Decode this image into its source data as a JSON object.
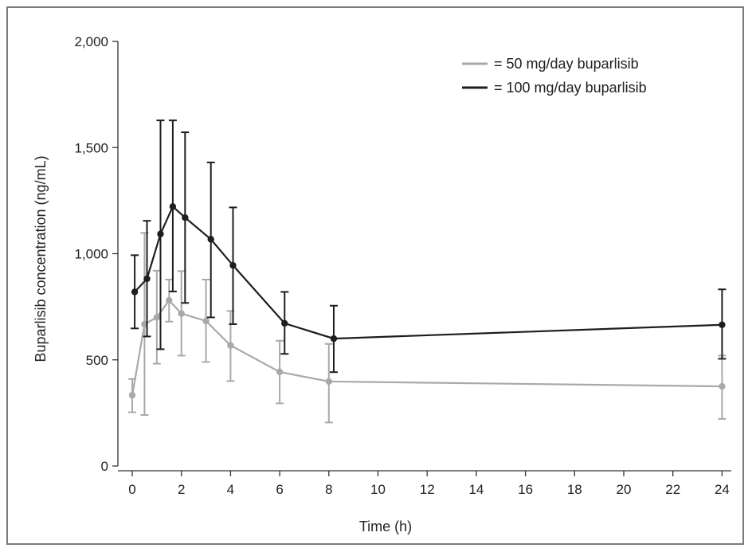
{
  "chart_data": {
    "type": "line",
    "title": "",
    "xlabel": "Time (h)",
    "ylabel": "Buparlisib concentration (ng/mL)",
    "xlim": [
      -0.6,
      24.6
    ],
    "ylim": [
      0,
      2000
    ],
    "xticks": [
      0,
      2,
      4,
      6,
      8,
      10,
      12,
      14,
      16,
      18,
      20,
      22,
      24
    ],
    "yticks": [
      0,
      500,
      1000,
      1500,
      2000
    ],
    "ytick_labels": [
      "0",
      "500",
      "1,000",
      "1,500",
      "2,000"
    ],
    "grid": false,
    "legend_position": "top-right",
    "series": [
      {
        "name": "= 50 mg/day buparlisib",
        "color": "#a9a9a9",
        "points": [
          {
            "x": 0,
            "y": 333,
            "err_low": 253,
            "err_high": 410
          },
          {
            "x": 0.5,
            "y": 668,
            "err_low": 240,
            "err_high": 1098
          },
          {
            "x": 1,
            "y": 700,
            "err_low": 482,
            "err_high": 920
          },
          {
            "x": 1.5,
            "y": 780,
            "err_low": 680,
            "err_high": 878
          },
          {
            "x": 2,
            "y": 718,
            "err_low": 520,
            "err_high": 918
          },
          {
            "x": 3,
            "y": 683,
            "err_low": 490,
            "err_high": 878
          },
          {
            "x": 4,
            "y": 568,
            "err_low": 400,
            "err_high": 730
          },
          {
            "x": 6,
            "y": 443,
            "err_low": 295,
            "err_high": 590
          },
          {
            "x": 8,
            "y": 398,
            "err_low": 205,
            "err_high": 575
          },
          {
            "x": 24,
            "y": 375,
            "err_low": 222,
            "err_high": 520
          }
        ]
      },
      {
        "name": "= 100 mg/day buparlisib",
        "color": "#1e1e1e",
        "points": [
          {
            "x": 0.1,
            "y": 820,
            "err_low": 648,
            "err_high": 993
          },
          {
            "x": 0.6,
            "y": 882,
            "err_low": 610,
            "err_high": 1155
          },
          {
            "x": 1.15,
            "y": 1093,
            "err_low": 550,
            "err_high": 1628
          },
          {
            "x": 1.65,
            "y": 1222,
            "err_low": 822,
            "err_high": 1628
          },
          {
            "x": 2.15,
            "y": 1170,
            "err_low": 768,
            "err_high": 1572
          },
          {
            "x": 3.2,
            "y": 1068,
            "err_low": 700,
            "err_high": 1430
          },
          {
            "x": 4.1,
            "y": 945,
            "err_low": 668,
            "err_high": 1218
          },
          {
            "x": 6.2,
            "y": 672,
            "err_low": 528,
            "err_high": 820
          },
          {
            "x": 8.2,
            "y": 600,
            "err_low": 442,
            "err_high": 755
          },
          {
            "x": 24,
            "y": 665,
            "err_low": 505,
            "err_high": 832
          }
        ]
      }
    ]
  }
}
